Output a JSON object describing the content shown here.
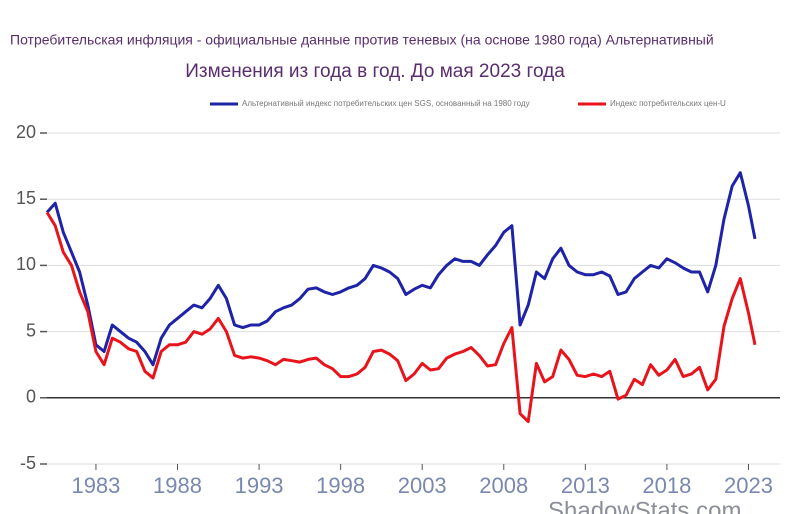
{
  "chart_data": {
    "type": "line",
    "title": "Потребительская инфляция - официальные данные против теневых (на основе 1980 года) Альтернативный",
    "subtitle": "Изменения из года в год. До мая 2023 года",
    "source": "ShadowStats.com",
    "x": [
      1980,
      1980.5,
      1981,
      1981.5,
      1982,
      1982.5,
      1983,
      1983.5,
      1984,
      1984.5,
      1985,
      1985.5,
      1986,
      1986.5,
      1987,
      1987.5,
      1988,
      1988.5,
      1989,
      1989.5,
      1990,
      1990.5,
      1991,
      1991.5,
      1992,
      1992.5,
      1993,
      1993.5,
      1994,
      1994.5,
      1995,
      1995.5,
      1996,
      1996.5,
      1997,
      1997.5,
      1998,
      1998.5,
      1999,
      1999.5,
      2000,
      2000.5,
      2001,
      2001.5,
      2002,
      2002.5,
      2003,
      2003.5,
      2004,
      2004.5,
      2005,
      2005.5,
      2006,
      2006.5,
      2007,
      2007.5,
      2008,
      2008.5,
      2009,
      2009.5,
      2010,
      2010.5,
      2011,
      2011.5,
      2012,
      2012.5,
      2013,
      2013.5,
      2014,
      2014.5,
      2015,
      2015.5,
      2016,
      2016.5,
      2017,
      2017.5,
      2018,
      2018.5,
      2019,
      2019.5,
      2020,
      2020.5,
      2021,
      2021.5,
      2022,
      2022.5,
      2023,
      2023.4
    ],
    "series": [
      {
        "name": "Альтернативный индекс потребительских цен SGS, основанный на 1980 году",
        "color": "#1f23a6",
        "values": [
          14,
          14.7,
          12.5,
          11,
          9.5,
          7,
          4,
          3.5,
          5.5,
          5,
          4.5,
          4.2,
          3.5,
          2.5,
          4.5,
          5.5,
          6,
          6.5,
          7,
          6.8,
          7.5,
          8.5,
          7.5,
          5.5,
          5.3,
          5.5,
          5.5,
          5.8,
          6.5,
          6.8,
          7,
          7.5,
          8.2,
          8.3,
          8,
          7.8,
          8,
          8.3,
          8.5,
          9,
          10,
          9.8,
          9.5,
          9,
          7.8,
          8.2,
          8.5,
          8.3,
          9.3,
          10,
          10.5,
          10.3,
          10.3,
          10,
          10.8,
          11.5,
          12.5,
          13,
          5.5,
          7,
          9.5,
          9,
          10.5,
          11.3,
          10,
          9.5,
          9.3,
          9.3,
          9.5,
          9.2,
          7.8,
          8,
          9,
          9.5,
          10,
          9.8,
          10.5,
          10.2,
          9.8,
          9.5,
          9.5,
          8,
          10,
          13.5,
          16,
          17,
          14.5,
          12
        ]
      },
      {
        "name": "Индекс потребительских цен-U",
        "color": "#e8141b",
        "values": [
          14,
          13,
          11,
          10,
          8,
          6.5,
          3.5,
          2.5,
          4.5,
          4.2,
          3.7,
          3.5,
          2,
          1.5,
          3.5,
          4,
          4,
          4.2,
          5,
          4.8,
          5.2,
          6,
          5,
          3.2,
          3,
          3.1,
          3,
          2.8,
          2.5,
          2.9,
          2.8,
          2.7,
          2.9,
          3,
          2.5,
          2.2,
          1.6,
          1.6,
          1.8,
          2.3,
          3.5,
          3.6,
          3.3,
          2.8,
          1.3,
          1.8,
          2.6,
          2.1,
          2.2,
          3,
          3.3,
          3.5,
          3.8,
          3.2,
          2.4,
          2.5,
          4.1,
          5.3,
          -1.2,
          -1.8,
          2.6,
          1.2,
          1.6,
          3.6,
          2.9,
          1.7,
          1.6,
          1.8,
          1.6,
          2,
          -0.1,
          0.2,
          1.4,
          1,
          2.5,
          1.7,
          2.1,
          2.9,
          1.6,
          1.8,
          2.3,
          0.6,
          1.4,
          5.4,
          7.5,
          9,
          6.4,
          4
        ]
      }
    ],
    "xlim": [
      1980,
      2023.4
    ],
    "xticks": [
      1983,
      1988,
      1993,
      1998,
      2003,
      2008,
      2013,
      2018,
      2023
    ],
    "ylim": [
      -5,
      20
    ],
    "yticks": [
      20,
      15,
      10,
      5,
      0,
      -5
    ],
    "grid": true
  }
}
